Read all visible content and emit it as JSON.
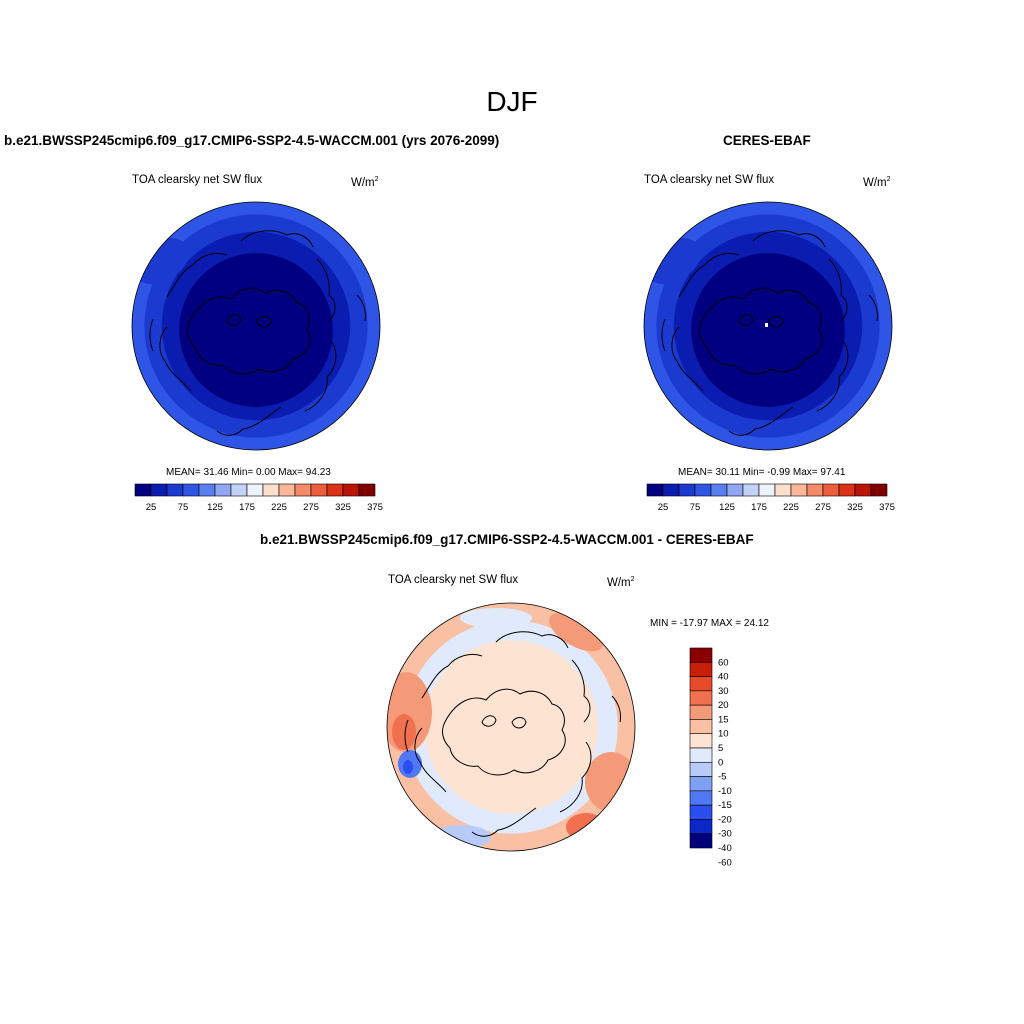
{
  "figure": {
    "season": "DJF",
    "variable_title": "TOA clearsky net SW flux",
    "units_base": "W/m",
    "units_exp": "2"
  },
  "panels": {
    "model": {
      "title": "b.e21.BWSSP245cmip6.f09_g17.CMIP6-SSP2-4.5-WACCM.001 (yrs 2076-2099)",
      "stats": "MEAN=  31.46  Min=   0.00  Max=  94.23"
    },
    "obs": {
      "title": "CERES-EBAF",
      "stats": "MEAN=  30.11  Min=  -0.99  Max=  97.41"
    },
    "diff": {
      "title": "b.e21.BWSSP245cmip6.f09_g17.CMIP6-SSP2-4.5-WACCM.001 - CERES-EBAF",
      "stats": "MIN = -17.97 MAX =  24.12"
    }
  },
  "colors": {
    "abs_scale": [
      "#000080",
      "#0a1db0",
      "#1b3ad0",
      "#2f55e6",
      "#5a7ff0",
      "#8fa7f2",
      "#c2d2f6",
      "#eef2fc",
      "#fde0cc",
      "#f9b89a",
      "#f48a6a",
      "#ec5e3e",
      "#dc3218",
      "#b81608",
      "#800000"
    ],
    "diff_scale": [
      "#00007a",
      "#0a28c8",
      "#2a4ef0",
      "#5078f2",
      "#80a0f4",
      "#b8caf8",
      "#e0eafc",
      "#fde4d2",
      "#f9c0a4",
      "#f59a78",
      "#f07050",
      "#e84a2a",
      "#c82008",
      "#8a0000"
    ],
    "coastline": "#000000"
  },
  "chart_data": [
    {
      "type": "heatmap",
      "name": "b.e21.BWSSP245cmip6.f09_g17.CMIP6-SSP2-4.5-WACCM.001 (yrs 2076-2099)",
      "projection": "polar-stereographic-north",
      "field": "TOA clearsky net SW flux",
      "units": "W/m2",
      "mean": 31.46,
      "min": 0.0,
      "max": 94.23,
      "contour_levels": [
        25,
        50,
        75,
        100,
        125,
        150,
        175,
        200,
        225,
        250,
        275,
        300,
        325,
        350
      ],
      "colorbar_tick_labels": [
        "25",
        "75",
        "125",
        "175",
        "225",
        "275",
        "325",
        "375"
      ],
      "colorbar_orientation": "horizontal"
    },
    {
      "type": "heatmap",
      "name": "CERES-EBAF",
      "projection": "polar-stereographic-north",
      "field": "TOA clearsky net SW flux",
      "units": "W/m2",
      "mean": 30.11,
      "min": -0.99,
      "max": 97.41,
      "contour_levels": [
        25,
        50,
        75,
        100,
        125,
        150,
        175,
        200,
        225,
        250,
        275,
        300,
        325,
        350
      ],
      "colorbar_tick_labels": [
        "25",
        "75",
        "125",
        "175",
        "225",
        "275",
        "325",
        "375"
      ],
      "colorbar_orientation": "horizontal"
    },
    {
      "type": "heatmap",
      "name": "b.e21.BWSSP245cmip6.f09_g17.CMIP6-SSP2-4.5-WACCM.001 - CERES-EBAF",
      "projection": "polar-stereographic-north",
      "field": "TOA clearsky net SW flux",
      "units": "W/m2",
      "min": -17.97,
      "max": 24.12,
      "contour_levels": [
        -60,
        -40,
        -30,
        -20,
        -15,
        -10,
        -5,
        0,
        5,
        10,
        15,
        20,
        30,
        40,
        60
      ],
      "colorbar_tick_labels": [
        "60",
        "40",
        "30",
        "20",
        "15",
        "10",
        "5",
        "0",
        "-5",
        "-10",
        "-15",
        "-20",
        "-30",
        "-40",
        "-60"
      ],
      "colorbar_orientation": "vertical"
    }
  ]
}
